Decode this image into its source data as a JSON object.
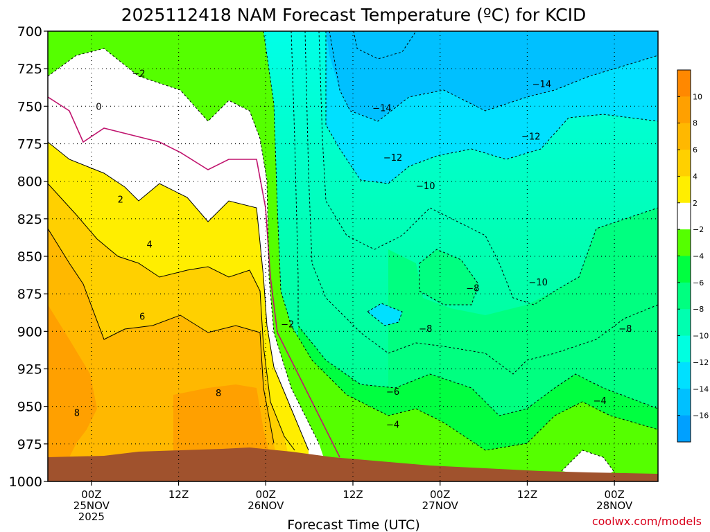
{
  "title": "2025112418 NAM Forecast Temperature (ºC) for KCID",
  "xlabel": "Forecast Time (UTC)",
  "credit": "coolwx.com/models",
  "chart_data": {
    "type": "heatmap",
    "title": "2025112418 NAM Forecast Temperature (ºC) for KCID",
    "xlabel": "Forecast Time (UTC)",
    "ylabel": "",
    "x_ticks": [
      {
        "hour": 6,
        "lines": [
          "00Z",
          "25NOV",
          "2025"
        ]
      },
      {
        "hour": 18,
        "lines": [
          "12Z"
        ]
      },
      {
        "hour": 30,
        "lines": [
          "00Z",
          "26NOV"
        ]
      },
      {
        "hour": 42,
        "lines": [
          "12Z"
        ]
      },
      {
        "hour": 54,
        "lines": [
          "00Z",
          "27NOV"
        ]
      },
      {
        "hour": 66,
        "lines": [
          "12Z"
        ]
      },
      {
        "hour": 78,
        "lines": [
          "00Z",
          "28NOV"
        ]
      }
    ],
    "xlim_hours": [
      0,
      84
    ],
    "y_ticks": [
      700,
      725,
      750,
      775,
      800,
      825,
      850,
      875,
      900,
      925,
      950,
      975,
      1000
    ],
    "ylim_hpa": [
      1000,
      700
    ],
    "grid": true,
    "colorbar": {
      "labels": [
        "10",
        "8",
        "6",
        "4",
        "2",
        "−2",
        "−4",
        "−6",
        "−8",
        "−10",
        "−12",
        "−14",
        "−16"
      ],
      "colors": [
        "#ff8800",
        "#ffa000",
        "#ffb800",
        "#ffd000",
        "#ffee00",
        "#ffffff",
        "#55ff00",
        "#00ff40",
        "#00ff80",
        "#00ffb0",
        "#00ffe0",
        "#00e0ff",
        "#00c0ff",
        "#00a0ff"
      ]
    },
    "contour_labels": [
      {
        "text": "−2",
        "hour": 12.5,
        "hpa": 728
      },
      {
        "text": "0",
        "hour": 7.0,
        "hpa": 750
      },
      {
        "text": "2",
        "hour": 10.0,
        "hpa": 812
      },
      {
        "text": "4",
        "hour": 14.0,
        "hpa": 842
      },
      {
        "text": "6",
        "hour": 13.0,
        "hpa": 890
      },
      {
        "text": "8",
        "hour": 4.0,
        "hpa": 954
      },
      {
        "text": "8",
        "hour": 23.5,
        "hpa": 941
      },
      {
        "text": "−2",
        "hour": 33.0,
        "hpa": 895
      },
      {
        "text": "−14",
        "hour": 46.0,
        "hpa": 751
      },
      {
        "text": "−14",
        "hour": 68.0,
        "hpa": 735
      },
      {
        "text": "−12",
        "hour": 47.5,
        "hpa": 784
      },
      {
        "text": "−12",
        "hour": 66.5,
        "hpa": 770
      },
      {
        "text": "−10",
        "hour": 52.0,
        "hpa": 803
      },
      {
        "text": "−10",
        "hour": 67.5,
        "hpa": 867
      },
      {
        "text": "−8",
        "hour": 58.5,
        "hpa": 871
      },
      {
        "text": "−8",
        "hour": 52.0,
        "hpa": 898
      },
      {
        "text": "−8",
        "hour": 79.5,
        "hpa": 898
      },
      {
        "text": "−6",
        "hour": 47.5,
        "hpa": 940
      },
      {
        "text": "−4",
        "hour": 47.5,
        "hpa": 962
      },
      {
        "text": "−4",
        "hour": 76.0,
        "hpa": 946
      }
    ]
  }
}
